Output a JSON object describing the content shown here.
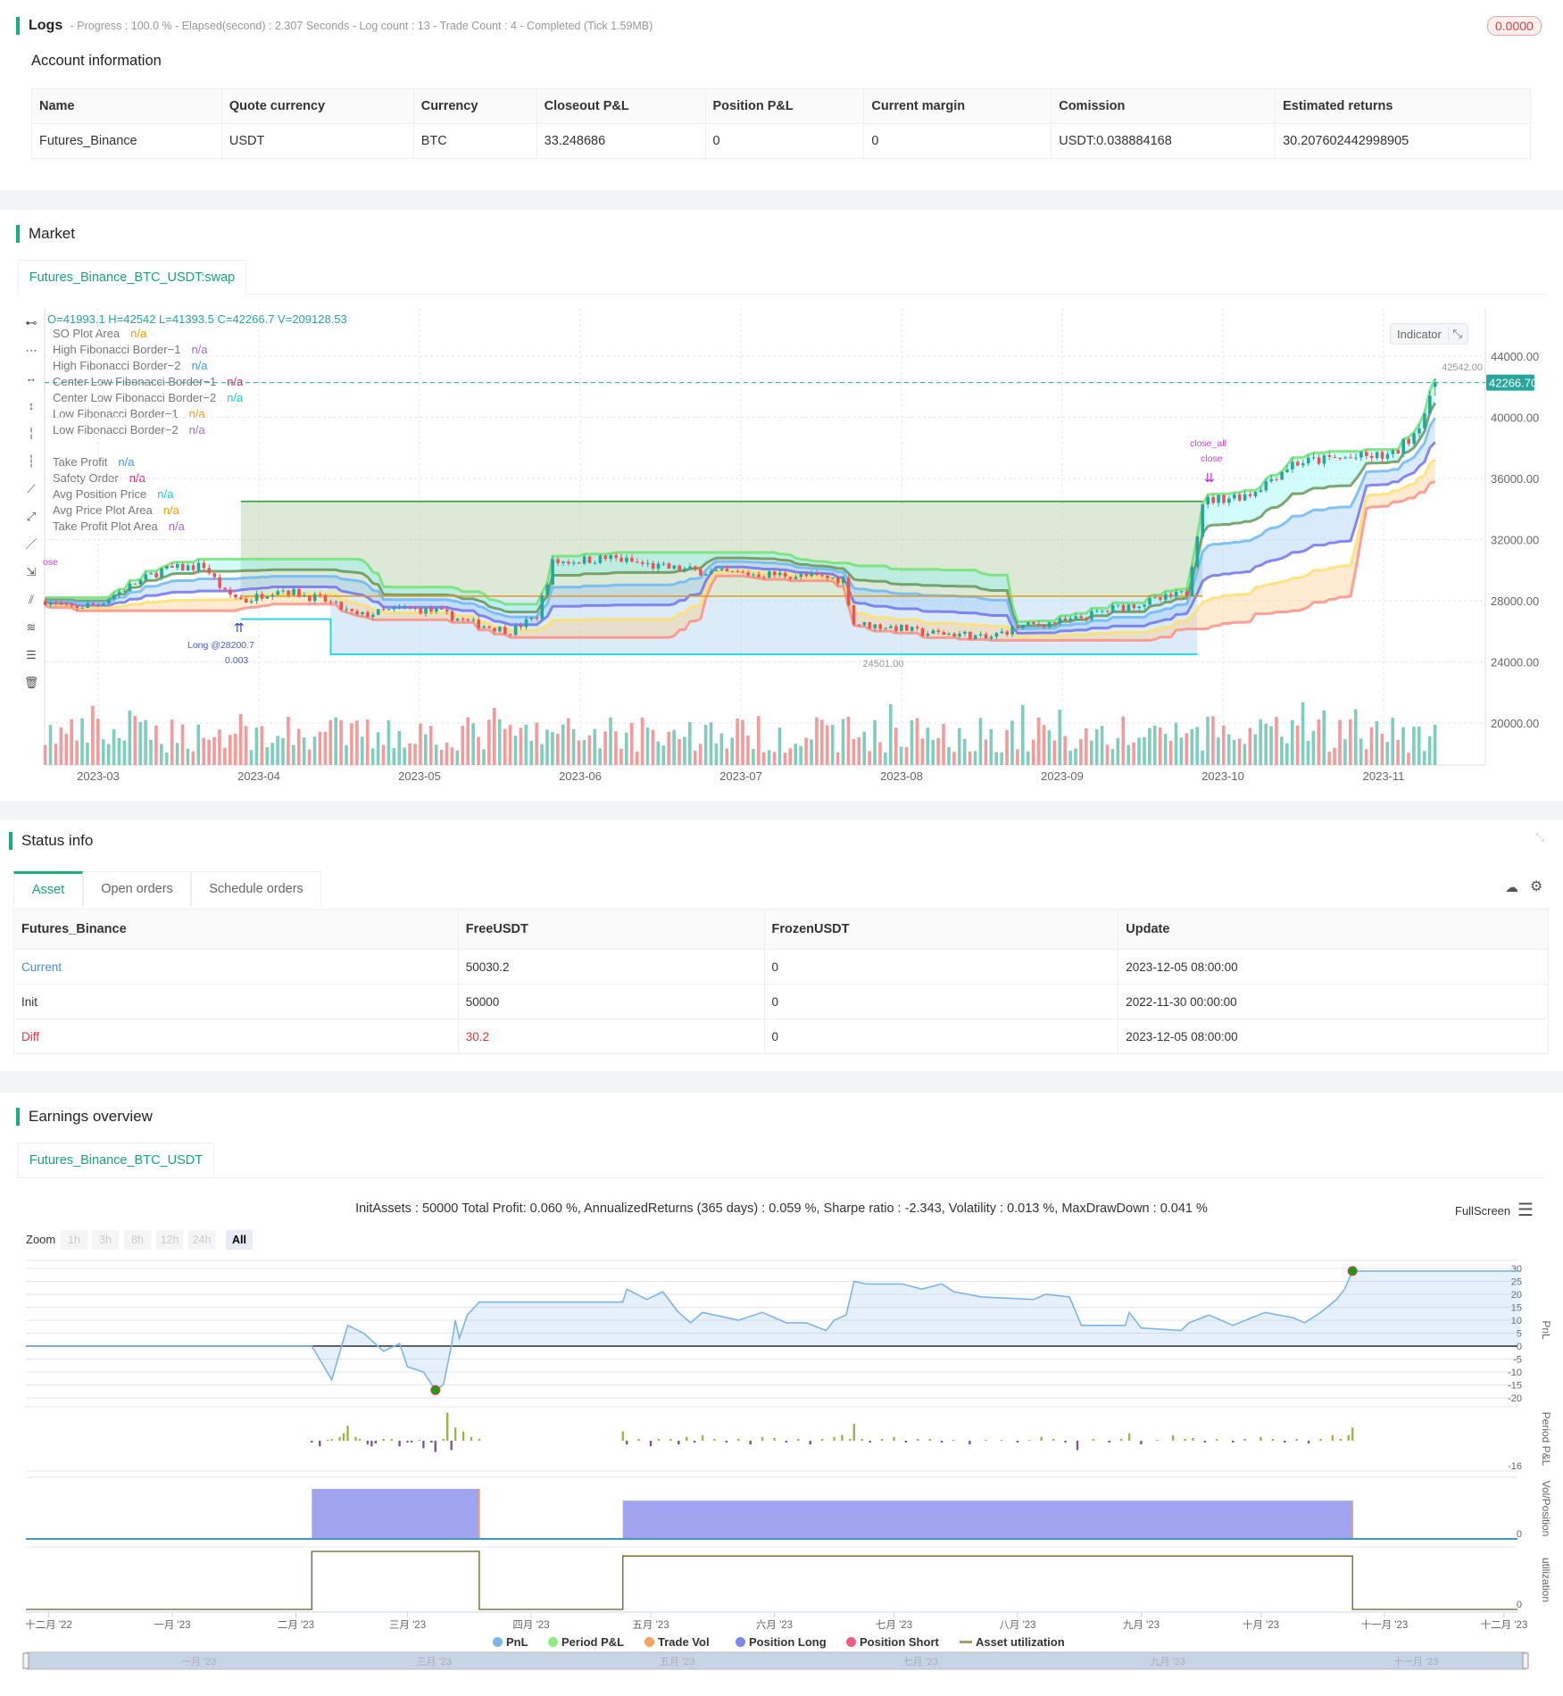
{
  "logs": {
    "title": "Logs",
    "summary": "- Progress : 100.0 % - Elapsed(second) : 2.307  Seconds - Log count : 13 - Trade Count : 4 - Completed (Tick 1.59MB)",
    "badge": "0.0000"
  },
  "account": {
    "title": "Account information",
    "headers": [
      "Name",
      "Quote currency",
      "Currency",
      "Closeout P&L",
      "Position P&L",
      "Current margin",
      "Comission",
      "Estimated returns"
    ],
    "row": [
      "Futures_Binance",
      "USDT",
      "BTC",
      "33.248686",
      "0",
      "0",
      "USDT:0.038884168",
      "30.207602442998905"
    ]
  },
  "market": {
    "title": "Market",
    "tab": "Futures_Binance_BTC_USDT:swap",
    "ohlc": "O=41993.1 H=42542 L=41393.5 C=42266.7 V=209128.53",
    "indicator_button": "Indicator",
    "legend": [
      {
        "label": "SO Plot Area",
        "value": "n/a",
        "color": "#ff9800"
      },
      {
        "label": "High Fibonacci Border−1",
        "value": "n/a",
        "color": "#9c6ade"
      },
      {
        "label": "High Fibonacci Border−2",
        "value": "n/a",
        "color": "#3d9bf0"
      },
      {
        "label": "Center Low Fibonacci Border−1",
        "value": "n/a",
        "color": "#e91e63"
      },
      {
        "label": "Center Low Fibonacci Border−2",
        "value": "n/a",
        "color": "#26c6da"
      },
      {
        "label": "Low Fibonacci Border−1",
        "value": "n/a",
        "color": "#ff9800"
      },
      {
        "label": "Low Fibonacci Border−2",
        "value": "n/a",
        "color": "#9c6ade"
      },
      {
        "label": "Take Profit",
        "value": "n/a",
        "color": "#3d9bf0"
      },
      {
        "label": "Safety Order",
        "value": "n/a",
        "color": "#e91e63"
      },
      {
        "label": "Avg Position Price",
        "value": "n/a",
        "color": "#26c6da"
      },
      {
        "label": "Avg Price Plot Area",
        "value": "n/a",
        "color": "#ff9800"
      },
      {
        "label": "Take Profit Plot Area",
        "value": "n/a",
        "color": "#9c6ade"
      }
    ],
    "tools": [
      "horizontal-line-icon",
      "horizontal-ray-icon",
      "horizontal-segment-icon",
      "vertical-line-icon",
      "vertical-ray-icon",
      "vertical-segment-icon",
      "trend-line-icon",
      "ray-line-icon",
      "segment-icon",
      "price-range-icon",
      "parallel-channel-icon",
      "fibonacci-icon",
      "fibonacci-levels-icon",
      "trash-icon"
    ],
    "price_axis": [
      "44000.00",
      "40000.00",
      "36000.00",
      "32000.00",
      "28000.00",
      "24000.00",
      "20000.00"
    ],
    "date_axis": [
      "2023-03",
      "2023-04",
      "2023-05",
      "2023-06",
      "2023-07",
      "2023-08",
      "2023-09",
      "2023-10",
      "2023-11"
    ],
    "last_price": "42266.70",
    "high_marker": "42542.00",
    "low_marker": "24501.00",
    "annotations": {
      "long": "Long @28200.7",
      "long_qty": "0.003",
      "close_all": "close_all",
      "close": "close",
      "left_close": "ose"
    },
    "colors": {
      "up": "#26a69a",
      "down": "#ef5350",
      "accent": "#17b07d"
    },
    "chart_data": {
      "type": "candlestick",
      "last_bar": {
        "open": 41993.1,
        "high": 42542,
        "low": 41393.5,
        "close": 42266.7,
        "volume": 209128.53
      },
      "close_path": [
        [
          "2023-02-19",
          28000
        ],
        [
          "2023-02-23",
          27500
        ],
        [
          "2023-03-01",
          27800
        ],
        [
          "2023-03-05",
          28600
        ],
        [
          "2023-03-13",
          30000
        ],
        [
          "2023-03-21",
          30300
        ],
        [
          "2023-03-25",
          28500
        ],
        [
          "2023-03-29",
          28000
        ],
        [
          "2023-04-04",
          28800
        ],
        [
          "2023-04-13",
          28000
        ],
        [
          "2023-04-19",
          27000
        ],
        [
          "2023-04-28",
          27500
        ],
        [
          "2023-05-04",
          27300
        ],
        [
          "2023-05-10",
          26600
        ],
        [
          "2023-05-18",
          26000
        ],
        [
          "2023-05-23",
          27000
        ],
        [
          "2023-05-26",
          30500
        ],
        [
          "2023-06-06",
          30800
        ],
        [
          "2023-06-15",
          30200
        ],
        [
          "2023-06-27",
          29800
        ],
        [
          "2023-07-09",
          29700
        ],
        [
          "2023-07-20",
          29400
        ],
        [
          "2023-07-22",
          26500
        ],
        [
          "2023-07-31",
          26200
        ],
        [
          "2023-08-04",
          25900
        ],
        [
          "2023-08-12",
          25800
        ],
        [
          "2023-08-16",
          25500
        ],
        [
          "2023-08-22",
          26300
        ],
        [
          "2023-09-01",
          26700
        ],
        [
          "2023-09-09",
          27500
        ],
        [
          "2023-09-17",
          28000
        ],
        [
          "2023-09-23",
          28500
        ],
        [
          "2023-09-26",
          34500
        ],
        [
          "2023-10-05",
          35000
        ],
        [
          "2023-10-13",
          37000
        ],
        [
          "2023-10-21",
          37300
        ],
        [
          "2023-11-01",
          37500
        ],
        [
          "2023-11-05",
          39000
        ],
        [
          "2023-11-08",
          41000
        ],
        [
          "2023-11-09",
          42266.7
        ]
      ],
      "take_profit": {
        "price": 34500,
        "from": "2023-03-28",
        "to": "2023-09-26",
        "color": "#2e9e3a"
      },
      "avg_price": {
        "price": 28300,
        "from": "2023-03-28",
        "to": "2023-09-26",
        "color": "#e09a1a"
      },
      "safety_order": [
        {
          "price": 26800,
          "from": "2023-03-28",
          "to": "2023-04-14"
        },
        {
          "price": 24501,
          "from": "2023-04-14",
          "to": "2023-09-25"
        }
      ],
      "band_colors": [
        "#6de06d",
        "#5f8f4f",
        "#64b5f6",
        "#6a6af0",
        "#ffe066",
        "#ff8a80"
      ]
    }
  },
  "status": {
    "title": "Status info",
    "tabs": [
      "Asset",
      "Open orders",
      "Schedule orders"
    ],
    "headers": [
      "Futures_Binance",
      "FreeUSDT",
      "FrozenUSDT",
      "Update"
    ],
    "rows": [
      [
        "Current",
        "50030.2",
        "0",
        "2023-12-05 08:00:00"
      ],
      [
        "Init",
        "50000",
        "0",
        "2022-11-30 00:00:00"
      ],
      [
        "Diff",
        "30.2",
        "0",
        "2023-12-05 08:00:00"
      ]
    ]
  },
  "earnings": {
    "title": "Earnings overview",
    "tab": "Futures_Binance_BTC_USDT",
    "stats": "InitAssets : 50000 Total Profit: 0.060 %, AnnualizedReturns (365 days) : 0.059 %, Sharpe ratio : -2.343, Volatility : 0.013 %, MaxDrawDown : 0.041 %",
    "fullscreen": "FullScreen",
    "zoom_label": "Zoom",
    "zoom_buttons": [
      "1h",
      "3h",
      "8h",
      "12h",
      "24h",
      "All"
    ],
    "zoom_selected": "All",
    "axis_titles": [
      "PnL",
      "Period P&L",
      "Vol/Position",
      "utilization"
    ],
    "pnl_ticks": [
      "30",
      "25",
      "20",
      "15",
      "10",
      "5",
      "0",
      "-5",
      "-10",
      "-15",
      "-20"
    ],
    "period_min_label": "-16",
    "zero_label": "0",
    "x_ticks": [
      "十二月 '22",
      "一月 '23",
      "二月 '23",
      "三月 '23",
      "四月 '23",
      "五月 '23",
      "六月 '23",
      "七月 '23",
      "八月 '23",
      "九月 '23",
      "十月 '23",
      "十一月 '23",
      "十二月 '23"
    ],
    "navigator_ticks": [
      "一月 '23",
      "三月 '23",
      "五月 '23",
      "七月 '23",
      "九月 '23",
      "十一月 '23"
    ],
    "legend": [
      {
        "label": "PnL",
        "color": "#7cb5ec"
      },
      {
        "label": "Period P&L",
        "color": "#90ed7d"
      },
      {
        "label": "Trade Vol",
        "color": "#f7a35c"
      },
      {
        "label": "Position Long",
        "color": "#8085e9"
      },
      {
        "label": "Position Short",
        "color": "#f15c80"
      },
      {
        "label": "Asset utilization",
        "color": "#a89a6a"
      }
    ],
    "chart_data": {
      "type": "line",
      "pnl_ylim": [
        -20,
        30
      ],
      "pnl": [
        [
          "2022-11-26",
          0
        ],
        [
          "2023-02-05",
          0
        ],
        [
          "2023-02-10",
          -13
        ],
        [
          "2023-02-14",
          8
        ],
        [
          "2023-02-18",
          5
        ],
        [
          "2023-02-23",
          -2
        ],
        [
          "2023-02-27",
          1
        ],
        [
          "2023-03-01",
          -8
        ],
        [
          "2023-03-05",
          -10
        ],
        [
          "2023-03-08",
          -17
        ],
        [
          "2023-03-10",
          -15
        ],
        [
          "2023-03-12",
          0
        ],
        [
          "2023-03-13",
          10
        ],
        [
          "2023-03-14",
          3
        ],
        [
          "2023-03-16",
          12
        ],
        [
          "2023-03-19",
          17
        ],
        [
          "2023-04-24",
          17
        ],
        [
          "2023-04-25",
          22
        ],
        [
          "2023-04-30",
          18
        ],
        [
          "2023-05-04",
          21
        ],
        [
          "2023-05-08",
          13
        ],
        [
          "2023-05-11",
          9
        ],
        [
          "2023-05-14",
          13
        ],
        [
          "2023-05-23",
          10
        ],
        [
          "2023-05-29",
          13
        ],
        [
          "2023-06-04",
          9
        ],
        [
          "2023-06-09",
          9
        ],
        [
          "2023-06-14",
          6
        ],
        [
          "2023-06-16",
          10
        ],
        [
          "2023-06-19",
          12
        ],
        [
          "2023-06-21",
          25
        ],
        [
          "2023-06-24",
          24
        ],
        [
          "2023-07-03",
          24
        ],
        [
          "2023-07-08",
          22
        ],
        [
          "2023-07-13",
          24
        ],
        [
          "2023-07-16",
          21
        ],
        [
          "2023-07-23",
          19
        ],
        [
          "2023-08-05",
          18
        ],
        [
          "2023-08-08",
          20
        ],
        [
          "2023-08-14",
          19
        ],
        [
          "2023-08-17",
          8
        ],
        [
          "2023-08-28",
          8
        ],
        [
          "2023-08-29",
          13
        ],
        [
          "2023-09-01",
          7
        ],
        [
          "2023-09-11",
          6
        ],
        [
          "2023-09-13",
          9
        ],
        [
          "2023-09-18",
          12
        ],
        [
          "2023-09-24",
          8
        ],
        [
          "2023-10-02",
          13
        ],
        [
          "2023-10-09",
          11
        ],
        [
          "2023-10-12",
          9
        ],
        [
          "2023-10-16",
          13
        ],
        [
          "2023-10-20",
          18
        ],
        [
          "2023-10-22",
          22
        ],
        [
          "2023-10-24",
          29
        ],
        [
          "2023-12-05",
          29
        ]
      ],
      "pnl_markers": [
        [
          "2023-03-08",
          -17
        ],
        [
          "2023-10-24",
          29
        ]
      ],
      "period_pnl": [
        [
          "2023-02-05",
          -1
        ],
        [
          "2023-02-07",
          -3
        ],
        [
          "2023-02-09",
          0.5
        ],
        [
          "2023-02-10",
          1
        ],
        [
          "2023-02-12",
          2
        ],
        [
          "2023-02-13",
          4
        ],
        [
          "2023-02-14",
          8
        ],
        [
          "2023-02-16",
          2
        ],
        [
          "2023-02-17",
          1
        ],
        [
          "2023-02-19",
          -2
        ],
        [
          "2023-02-20",
          -3
        ],
        [
          "2023-02-21",
          -1.5
        ],
        [
          "2023-02-23",
          1
        ],
        [
          "2023-02-25",
          1
        ],
        [
          "2023-02-27",
          -3
        ],
        [
          "2023-03-01",
          -1
        ],
        [
          "2023-03-02",
          -1
        ],
        [
          "2023-03-04",
          0.5
        ],
        [
          "2023-03-05",
          -4
        ],
        [
          "2023-03-07",
          -1
        ],
        [
          "2023-03-08",
          -6
        ],
        [
          "2023-03-10",
          1
        ],
        [
          "2023-03-11",
          15
        ],
        [
          "2023-03-12",
          -5
        ],
        [
          "2023-03-13",
          7
        ],
        [
          "2023-03-15",
          5
        ],
        [
          "2023-03-17",
          2
        ],
        [
          "2023-03-19",
          1
        ],
        [
          "2023-04-24",
          5
        ],
        [
          "2023-04-25",
          -2
        ],
        [
          "2023-04-28",
          1
        ],
        [
          "2023-05-01",
          -3
        ],
        [
          "2023-05-03",
          1
        ],
        [
          "2023-05-06",
          1
        ],
        [
          "2023-05-08",
          -2
        ],
        [
          "2023-05-10",
          2
        ],
        [
          "2023-05-12",
          -1
        ],
        [
          "2023-05-14",
          3
        ],
        [
          "2023-05-17",
          1
        ],
        [
          "2023-05-20",
          -1
        ],
        [
          "2023-05-23",
          1
        ],
        [
          "2023-05-26",
          -2
        ],
        [
          "2023-05-29",
          2
        ],
        [
          "2023-06-01",
          1.5
        ],
        [
          "2023-06-04",
          -1
        ],
        [
          "2023-06-07",
          1
        ],
        [
          "2023-06-10",
          -2
        ],
        [
          "2023-06-13",
          1
        ],
        [
          "2023-06-16",
          2
        ],
        [
          "2023-06-18",
          3
        ],
        [
          "2023-06-20",
          1
        ],
        [
          "2023-06-21",
          9
        ],
        [
          "2023-06-23",
          1
        ],
        [
          "2023-06-25",
          -1
        ],
        [
          "2023-06-28",
          1
        ],
        [
          "2023-07-01",
          2
        ],
        [
          "2023-07-04",
          -1
        ],
        [
          "2023-07-07",
          1
        ],
        [
          "2023-07-10",
          1
        ],
        [
          "2023-07-13",
          -1
        ],
        [
          "2023-07-16",
          0.5
        ],
        [
          "2023-07-20",
          -2
        ],
        [
          "2023-07-24",
          0.5
        ],
        [
          "2023-07-28",
          0.5
        ],
        [
          "2023-08-01",
          -1
        ],
        [
          "2023-08-04",
          0.5
        ],
        [
          "2023-08-07",
          2
        ],
        [
          "2023-08-10",
          1
        ],
        [
          "2023-08-13",
          -1
        ],
        [
          "2023-08-16",
          -5
        ],
        [
          "2023-08-20",
          1
        ],
        [
          "2023-08-24",
          -1
        ],
        [
          "2023-08-27",
          1
        ],
        [
          "2023-08-29",
          4
        ],
        [
          "2023-09-01",
          -2
        ],
        [
          "2023-09-05",
          0.5
        ],
        [
          "2023-09-09",
          3
        ],
        [
          "2023-09-12",
          1
        ],
        [
          "2023-09-14",
          1.5
        ],
        [
          "2023-09-17",
          -1
        ],
        [
          "2023-09-20",
          1
        ],
        [
          "2023-09-24",
          -1
        ],
        [
          "2023-09-27",
          1
        ],
        [
          "2023-10-01",
          2
        ],
        [
          "2023-10-04",
          1
        ],
        [
          "2023-10-07",
          -1
        ],
        [
          "2023-10-10",
          1
        ],
        [
          "2023-10-13",
          -1.5
        ],
        [
          "2023-10-16",
          1
        ],
        [
          "2023-10-19",
          3
        ],
        [
          "2023-10-21",
          1
        ],
        [
          "2023-10-23",
          3
        ],
        [
          "2023-10-24",
          7
        ]
      ],
      "position_long": [
        {
          "from": "2023-02-05",
          "to": "2023-03-19",
          "level": 1.0
        },
        {
          "from": "2023-04-24",
          "to": "2023-10-24",
          "level": 0.76
        }
      ],
      "asset_utilization": [
        {
          "from": "2023-02-05",
          "to": "2023-03-19",
          "level": 1.0
        },
        {
          "from": "2023-04-24",
          "to": "2023-10-24",
          "level": 0.92
        }
      ]
    }
  }
}
